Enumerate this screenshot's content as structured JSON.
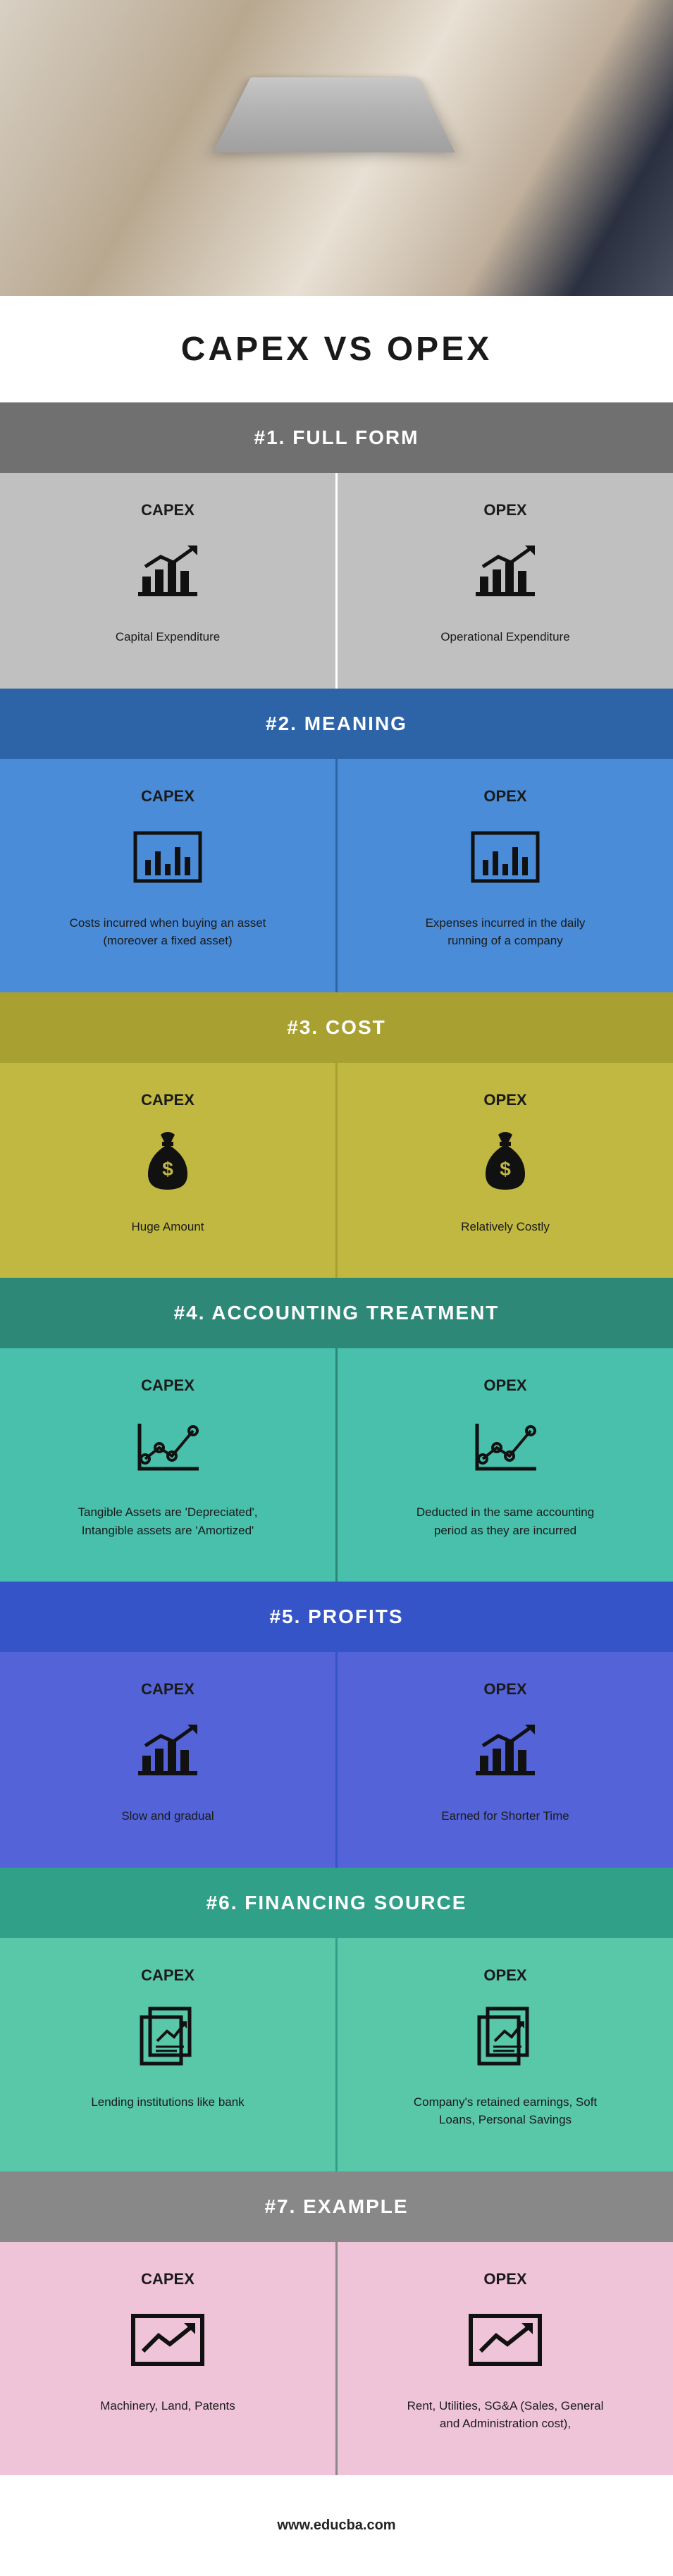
{
  "hero": {
    "bg": "#c0b090"
  },
  "title": {
    "text": "CAPEX VS OPEX",
    "bg": "#ffffff",
    "color": "#1a1a1a"
  },
  "sections": [
    {
      "header": "#1. FULL FORM",
      "header_bg": "#707070",
      "body_bg": "#c0c0c0",
      "text_color": "#1a1a1a",
      "divider_color": "#ffffff",
      "icon": "bars-arrow",
      "capex_desc": "Capital Expenditure",
      "opex_desc": "Operational Expenditure"
    },
    {
      "header": "#2. MEANING",
      "header_bg": "#2d64a8",
      "body_bg": "#4a8cd8",
      "text_color": "#1a1a1a",
      "divider_color": "#2d64a8",
      "icon": "bar-frame",
      "capex_desc": "Costs incurred when buying an asset (moreover a fixed asset)",
      "opex_desc": "Expenses incurred in the daily running of a company"
    },
    {
      "header": "#3. COST",
      "header_bg": "#a8a030",
      "body_bg": "#c0b840",
      "text_color": "#1a1a1a",
      "divider_color": "#a8a030",
      "icon": "money-bag",
      "capex_desc": "Huge Amount",
      "opex_desc": "Relatively Costly"
    },
    {
      "header": "#4.  ACCOUNTING TREATMENT",
      "header_bg": "#2d8878",
      "body_bg": "#48c0ac",
      "text_color": "#1a1a1a",
      "divider_color": "#2d8878",
      "icon": "line-points",
      "capex_desc": "Tangible Assets are 'Depreciated', Intangible assets are 'Amortized'",
      "opex_desc": "Deducted in the same accounting period as they are incurred"
    },
    {
      "header": "#5. PROFITS",
      "header_bg": "#3454c8",
      "body_bg": "#5464d8",
      "text_color": "#1a1a1a",
      "divider_color": "#3454c8",
      "icon": "bars-arrow",
      "capex_desc": "Slow and gradual",
      "opex_desc": "Earned for Shorter Time"
    },
    {
      "header": "#6. FINANCING SOURCE",
      "header_bg": "#30a088",
      "body_bg": "#58c8a8",
      "text_color": "#1a1a1a",
      "divider_color": "#30a088",
      "icon": "doc-arrow",
      "capex_desc": "Lending institutions like bank",
      "opex_desc": "Company's retained earnings, Soft Loans, Personal Savings"
    },
    {
      "header": "#7. EXAMPLE",
      "header_bg": "#888888",
      "body_bg": "#f0c4d8",
      "text_color": "#1a1a1a",
      "divider_color": "#888888",
      "icon": "arrow-frame",
      "capex_desc": "Machinery, Land, Patents",
      "opex_desc": "Rent, Utilities, SG&A (Sales, General and Administration cost),"
    }
  ],
  "labels": {
    "capex": "CAPEX",
    "opex": "OPEX"
  },
  "footer": "www.educba.com"
}
